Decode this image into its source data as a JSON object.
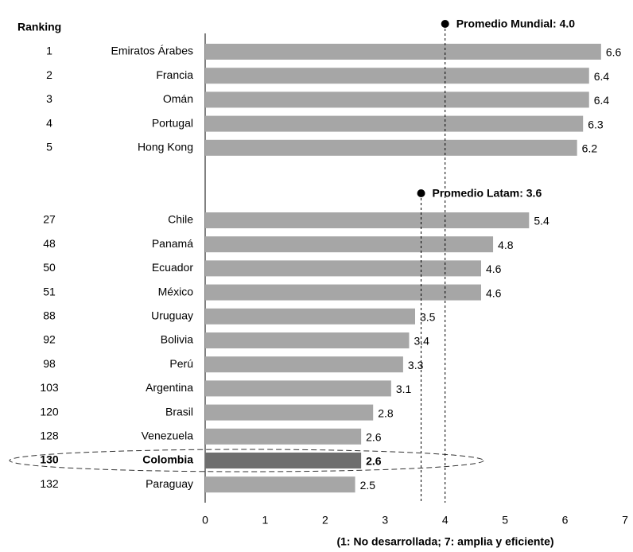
{
  "chart_data": {
    "type": "bar",
    "orientation": "horizontal",
    "ranking_header": "Ranking",
    "rankings": [
      1,
      2,
      3,
      4,
      5,
      27,
      48,
      50,
      51,
      88,
      92,
      98,
      103,
      120,
      128,
      130,
      132
    ],
    "categories": [
      "Emiratos Árabes",
      "Francia",
      "Omán",
      "Portugal",
      "Hong Kong",
      "Chile",
      "Panamá",
      "Ecuador",
      "México",
      "Uruguay",
      "Bolivia",
      "Perú",
      "Argentina",
      "Brasil",
      "Venezuela",
      "Colombia",
      "Paraguay"
    ],
    "values": [
      6.6,
      6.4,
      6.4,
      6.3,
      6.2,
      5.4,
      4.8,
      4.6,
      4.6,
      3.5,
      3.4,
      3.3,
      3.1,
      2.8,
      2.6,
      2.6,
      2.5
    ],
    "color": "#a6a6a6",
    "colors": [
      "#a6a6a6",
      "#a6a6a6",
      "#a6a6a6",
      "#a6a6a6",
      "#a6a6a6",
      "#a6a6a6",
      "#a6a6a6",
      "#a6a6a6",
      "#a6a6a6",
      "#a6a6a6",
      "#a6a6a6",
      "#a6a6a6",
      "#a6a6a6",
      "#a6a6a6",
      "#a6a6a6",
      "#6e6e6e",
      "#a6a6a6"
    ],
    "xlim": [
      0,
      7
    ],
    "xticks": [
      0,
      1,
      2,
      3,
      4,
      5,
      6,
      7
    ],
    "xlabel": "(1: No desarrollada; 7: amplia y eficiente)",
    "reference_lines": [
      {
        "label": "Promedio Mundial: 4.0",
        "value": 4.0
      },
      {
        "label": "Promedio Latam: 3.6",
        "value": 3.6
      }
    ]
  }
}
